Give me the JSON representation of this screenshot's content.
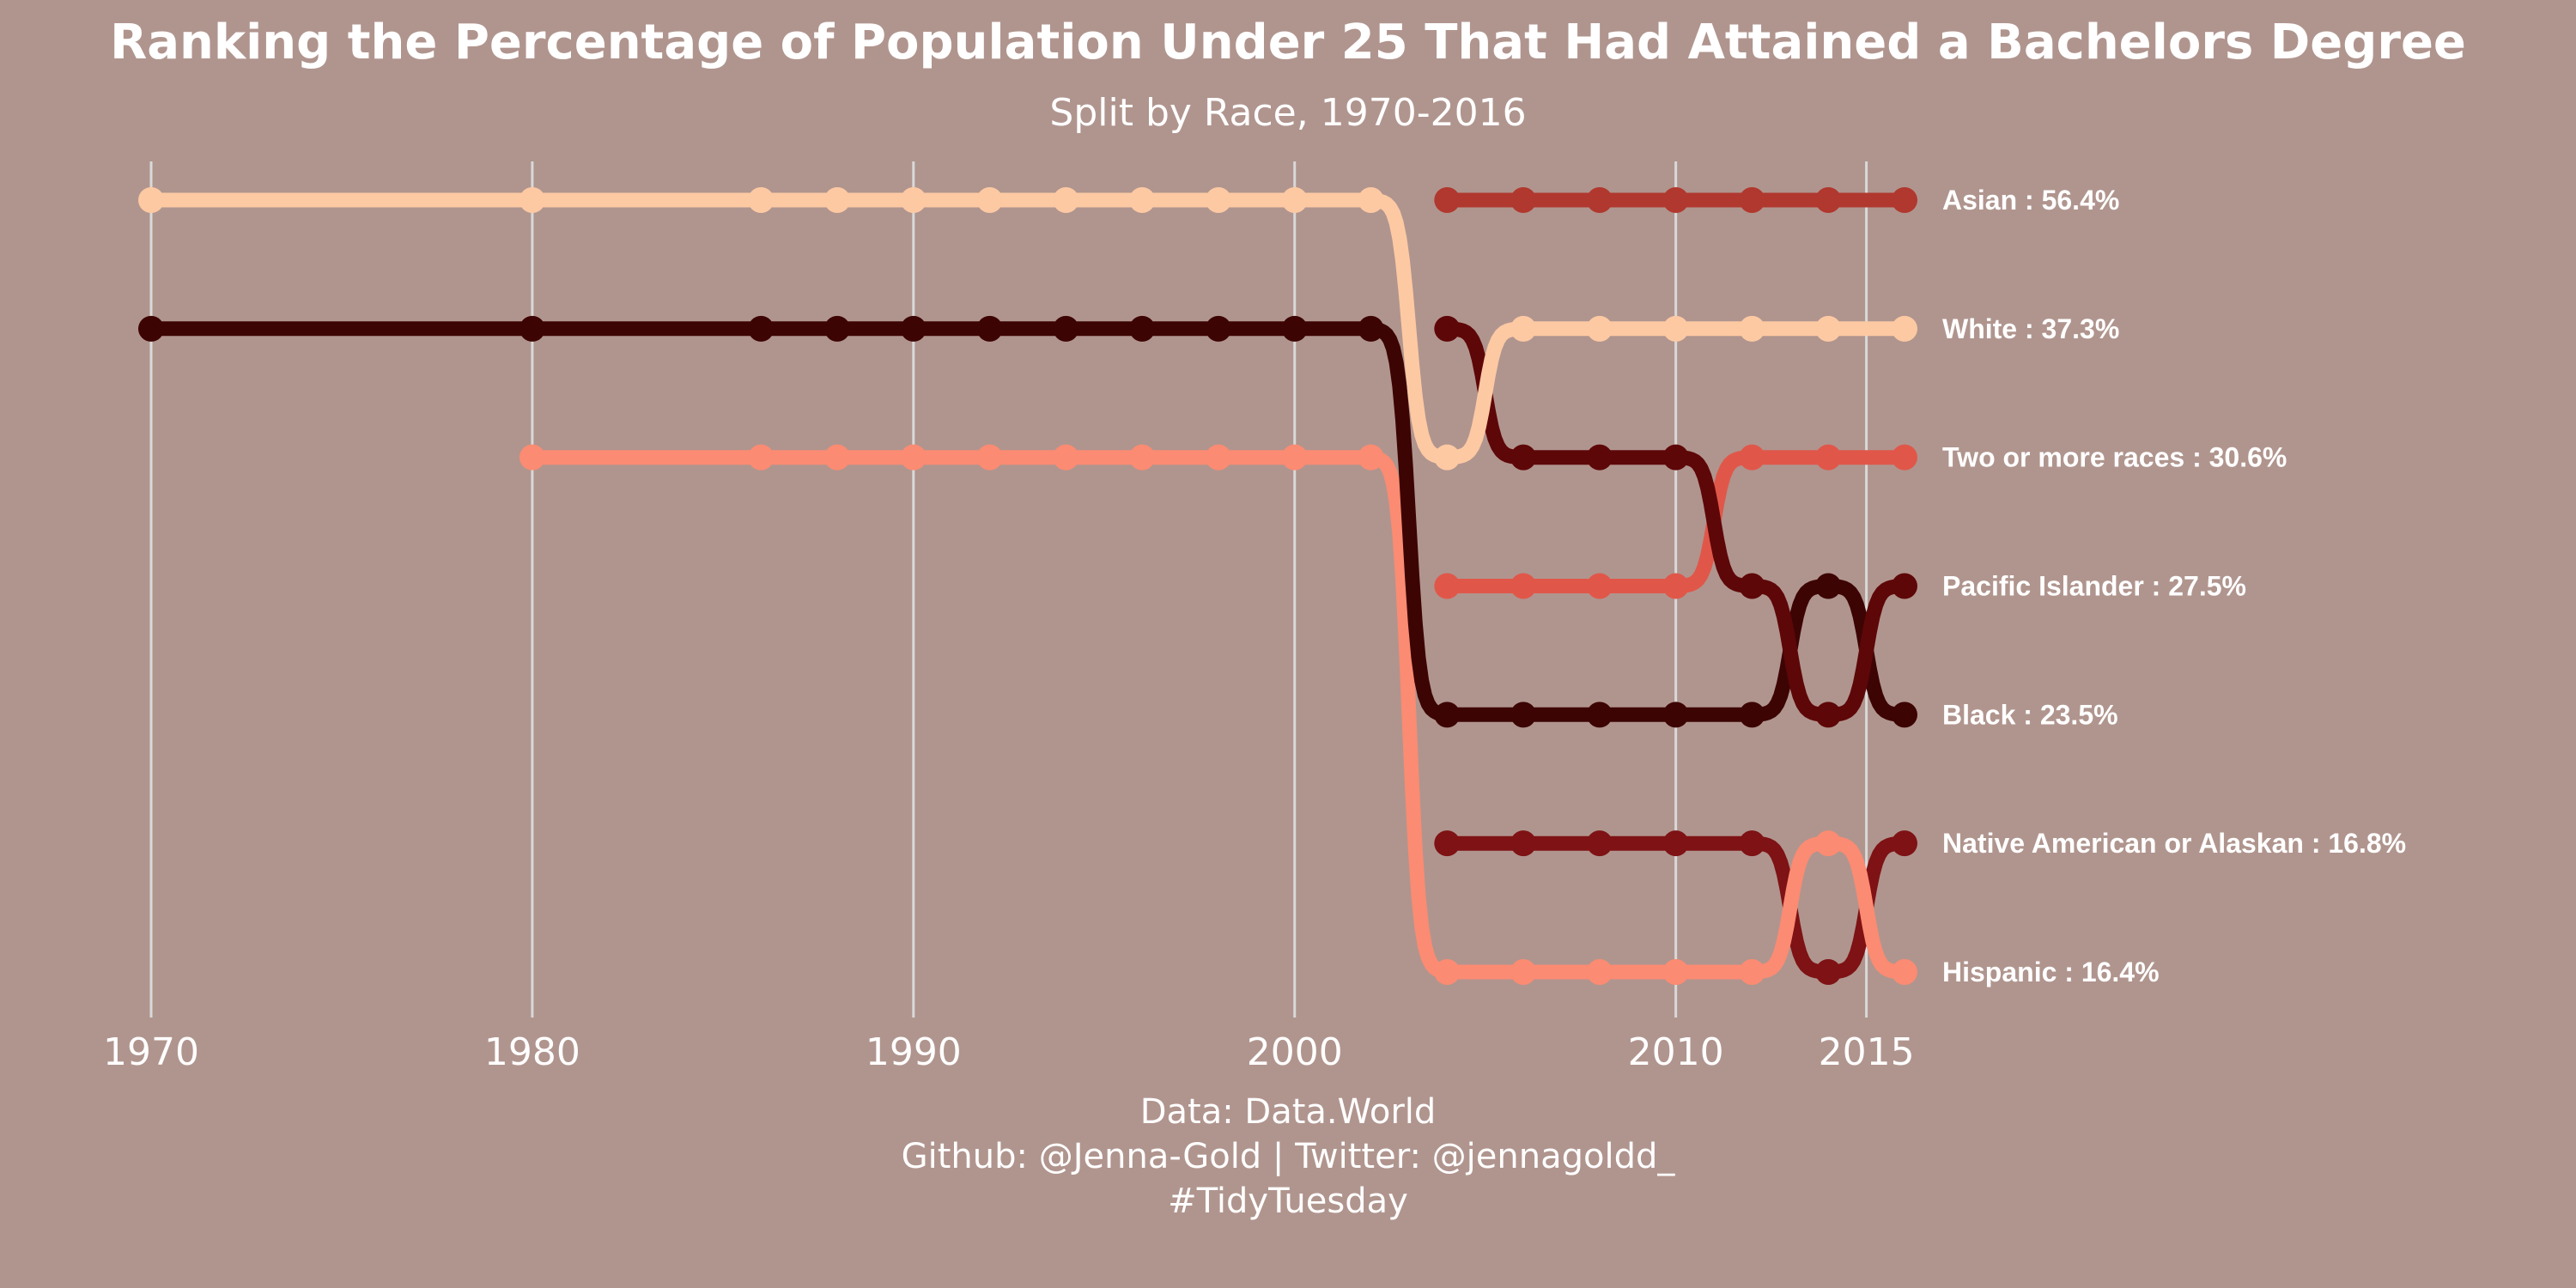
{
  "chart_data": {
    "type": "line",
    "subtype": "bump",
    "title": "Ranking the Percentage of Population Under 25 That Had Attained a Bachelors Degree",
    "subtitle": "Split by Race, 1970-2016",
    "xlabel": "",
    "ylabel": "",
    "x_ticks": [
      1970,
      1980,
      1990,
      2000,
      2010,
      2015
    ],
    "xlim": [
      1970,
      2016
    ],
    "ylim": [
      1,
      7
    ],
    "y_reversed": true,
    "grid": "vertical",
    "background": "#b0958e",
    "series": [
      {
        "name": "Asian",
        "label": "Asian : 56.4%",
        "color": "#b0382e",
        "x": [
          2004,
          2006,
          2008,
          2010,
          2012,
          2014,
          2016
        ],
        "rank": [
          1,
          1,
          1,
          1,
          1,
          1,
          1
        ]
      },
      {
        "name": "White",
        "label": "White : 37.3%",
        "color": "#fdc9a3",
        "x": [
          1970,
          1980,
          1986,
          1988,
          1990,
          1992,
          1994,
          1996,
          1998,
          2000,
          2002,
          2004,
          2006,
          2008,
          2010,
          2012,
          2014,
          2016
        ],
        "rank": [
          1,
          1,
          1,
          1,
          1,
          1,
          1,
          1,
          1,
          1,
          1,
          3,
          2,
          2,
          2,
          2,
          2,
          2
        ]
      },
      {
        "name": "Two or more races",
        "label": "Two or more races : 30.6%",
        "color": "#e0574a",
        "x": [
          2004,
          2006,
          2008,
          2010,
          2012,
          2014,
          2016
        ],
        "rank": [
          4,
          4,
          4,
          4,
          3,
          3,
          3
        ]
      },
      {
        "name": "Pacific Islander",
        "label": "Pacific Islander : 27.5%",
        "color": "#5e0708",
        "x": [
          2004,
          2006,
          2008,
          2010,
          2012,
          2014,
          2016
        ],
        "rank": [
          2,
          3,
          3,
          3,
          4,
          5,
          4
        ]
      },
      {
        "name": "Black",
        "label": "Black : 23.5%",
        "color": "#3d0404",
        "x": [
          1970,
          1980,
          1986,
          1988,
          1990,
          1992,
          1994,
          1996,
          1998,
          2000,
          2002,
          2004,
          2006,
          2008,
          2010,
          2012,
          2014,
          2016
        ],
        "rank": [
          2,
          2,
          2,
          2,
          2,
          2,
          2,
          2,
          2,
          2,
          2,
          5,
          5,
          5,
          5,
          5,
          4,
          5
        ]
      },
      {
        "name": "Native American or Alaskan",
        "label": "Native American or Alaskan : 16.8%",
        "color": "#7e1214",
        "x": [
          2004,
          2006,
          2008,
          2010,
          2012,
          2014,
          2016
        ],
        "rank": [
          6,
          6,
          6,
          6,
          6,
          7,
          6
        ]
      },
      {
        "name": "Hispanic",
        "label": "Hispanic : 16.4%",
        "color": "#fb8b72",
        "x": [
          1980,
          1986,
          1988,
          1990,
          1992,
          1994,
          1996,
          1998,
          2000,
          2002,
          2004,
          2006,
          2008,
          2010,
          2012,
          2014,
          2016
        ],
        "rank": [
          3,
          3,
          3,
          3,
          3,
          3,
          3,
          3,
          3,
          3,
          7,
          7,
          7,
          7,
          7,
          6,
          7
        ]
      }
    ],
    "caption": [
      "Data: Data.World",
      "Github: @Jenna-Gold | Twitter: @jennagoldd_",
      "#TidyTuesday"
    ]
  }
}
